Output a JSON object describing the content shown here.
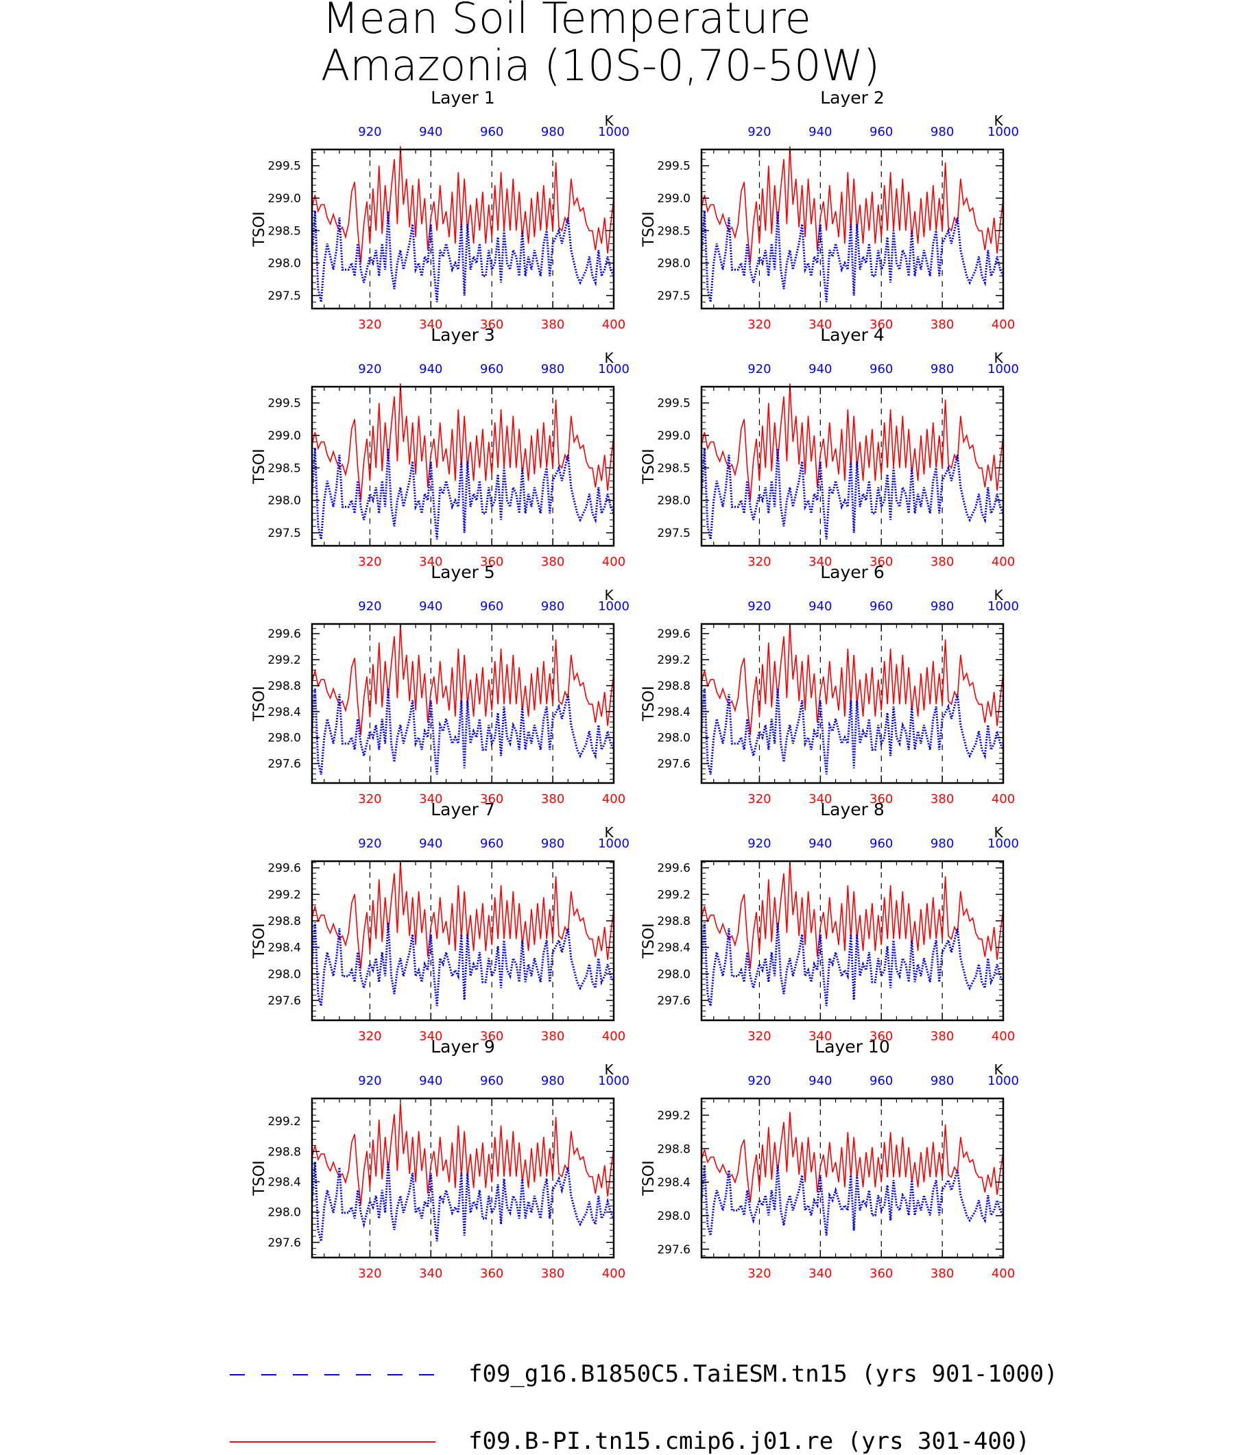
{
  "title": {
    "line1": "Mean Soil Temperature",
    "line2": "Amazonia (10S-0,70-50W)"
  },
  "colors": {
    "series_red": "#ff0000",
    "series_blue": "#0000ff",
    "axis": "#000000"
  },
  "legend": [
    {
      "label": "f09_g16.B1850C5.TaiESM.tn15 (yrs 901-1000)",
      "color": "#0000ff",
      "style": "dashed"
    },
    {
      "label": "f09.B-PI.tn15.cmip6.j01.re (yrs 301-400)",
      "color": "#ff0000",
      "style": "solid"
    }
  ],
  "chart_data": {
    "type": "line",
    "panel_count": 10,
    "layout": "5 rows x 2 columns",
    "ylabel": "TSOI",
    "bottom_axis": {
      "color": "#ff0000",
      "range": [
        301,
        400
      ],
      "ticks": [
        "320",
        "340",
        "360",
        "380",
        "400"
      ]
    },
    "top_axis": {
      "color": "#0000ff",
      "range": [
        901,
        1000
      ],
      "ticks": [
        "920",
        "940",
        "960",
        "980",
        "1000"
      ],
      "unit_label": "K"
    },
    "vertical_reference_lines": [
      320,
      340,
      360,
      380
    ],
    "red_series_values": [
      298.85,
      299.05,
      298.8,
      298.9,
      298.9,
      298.7,
      298.6,
      298.75,
      298.6,
      298.5,
      298.55,
      298.4,
      298.6,
      299.1,
      299.25,
      298.5,
      298.0,
      298.6,
      298.95,
      298.3,
      299.15,
      298.5,
      299.5,
      298.45,
      299.2,
      298.6,
      299.15,
      299.6,
      298.6,
      299.8,
      298.9,
      299.3,
      298.55,
      299.2,
      298.4,
      299.3,
      298.6,
      299.0,
      298.2,
      298.7,
      298.95,
      298.5,
      299.2,
      298.6,
      298.8,
      298.4,
      299.1,
      298.3,
      299.4,
      298.5,
      299.3,
      298.5,
      298.9,
      298.3,
      299.0,
      298.5,
      299.1,
      298.3,
      298.9,
      298.4,
      299.2,
      298.5,
      299.4,
      298.5,
      299.15,
      298.5,
      299.3,
      298.5,
      299.1,
      298.4,
      298.8,
      298.3,
      299.0,
      298.4,
      299.1,
      298.5,
      299.2,
      298.5,
      299.0,
      298.5,
      299.55,
      298.55,
      298.5,
      298.7,
      298.6,
      299.3,
      298.9,
      299.0,
      298.8,
      298.85,
      298.6,
      298.5,
      298.5,
      298.2,
      298.55,
      298.3,
      298.7,
      298.15,
      298.6,
      299.0
    ],
    "blue_series_values": [
      298.1,
      298.8,
      297.6,
      297.4,
      298.0,
      298.3,
      298.1,
      297.9,
      298.2,
      298.7,
      297.9,
      297.9,
      297.9,
      298.0,
      297.8,
      298.3,
      297.9,
      297.7,
      297.9,
      298.1,
      298.0,
      298.2,
      297.8,
      298.3,
      297.9,
      298.8,
      297.9,
      297.6,
      298.0,
      298.2,
      297.9,
      298.1,
      298.3,
      298.6,
      297.9,
      298.0,
      297.8,
      298.1,
      298.0,
      298.6,
      297.9,
      297.4,
      298.2,
      298.1,
      298.3,
      298.1,
      297.9,
      298.0,
      297.9,
      298.6,
      297.5,
      298.6,
      297.9,
      298.1,
      298.0,
      298.3,
      297.8,
      297.8,
      298.2,
      297.9,
      298.0,
      298.4,
      297.7,
      298.5,
      298.0,
      297.9,
      298.2,
      298.1,
      297.8,
      298.5,
      297.8,
      298.1,
      297.9,
      298.2,
      298.0,
      297.8,
      298.3,
      298.5,
      297.8,
      298.3,
      298.4,
      298.5,
      298.3,
      298.5,
      298.7,
      298.2,
      298.0,
      297.8,
      297.7,
      297.8,
      297.9,
      298.1,
      297.8,
      297.7,
      298.2,
      297.8,
      297.9,
      298.1,
      297.9,
      297.8
    ],
    "panels": [
      {
        "title": "Layer 1",
        "ylim": [
          297.3,
          299.75
        ],
        "yticks": [
          "299.5",
          "299.0",
          "298.5",
          "298.0",
          "297.5"
        ],
        "ytick_values": [
          299.5,
          299.0,
          298.5,
          298.0,
          297.5
        ],
        "red_offset": 0.0,
        "blue_offset": 0.0,
        "scale": 1.0
      },
      {
        "title": "Layer 2",
        "ylim": [
          297.3,
          299.75
        ],
        "yticks": [
          "299.5",
          "299.0",
          "298.5",
          "298.0",
          "297.5"
        ],
        "ytick_values": [
          299.5,
          299.0,
          298.5,
          298.0,
          297.5
        ],
        "red_offset": 0.0,
        "blue_offset": 0.0,
        "scale": 1.0
      },
      {
        "title": "Layer 3",
        "ylim": [
          297.3,
          299.75
        ],
        "yticks": [
          "299.5",
          "299.0",
          "298.5",
          "298.0",
          "297.5"
        ],
        "ytick_values": [
          299.5,
          299.0,
          298.5,
          298.0,
          297.5
        ],
        "red_offset": 0.0,
        "blue_offset": 0.0,
        "scale": 1.0
      },
      {
        "title": "Layer 4",
        "ylim": [
          297.3,
          299.75
        ],
        "yticks": [
          "299.5",
          "299.0",
          "298.5",
          "298.0",
          "297.5"
        ],
        "ytick_values": [
          299.5,
          299.0,
          298.5,
          298.0,
          297.5
        ],
        "red_offset": 0.0,
        "blue_offset": 0.0,
        "scale": 1.0
      },
      {
        "title": "Layer 5",
        "ylim": [
          297.3,
          299.75
        ],
        "yticks": [
          "299.6",
          "299.2",
          "298.8",
          "298.4",
          "298.0",
          "297.6"
        ],
        "ytick_values": [
          299.6,
          299.2,
          298.8,
          298.4,
          298.0,
          297.6
        ],
        "red_offset": 0.0,
        "blue_offset": 0.0,
        "scale": 0.95
      },
      {
        "title": "Layer 6",
        "ylim": [
          297.3,
          299.75
        ],
        "yticks": [
          "299.6",
          "299.2",
          "298.8",
          "298.4",
          "298.0",
          "297.6"
        ],
        "ytick_values": [
          299.6,
          299.2,
          298.8,
          298.4,
          298.0,
          297.6
        ],
        "red_offset": 0.0,
        "blue_offset": 0.0,
        "scale": 0.95
      },
      {
        "title": "Layer 7",
        "ylim": [
          297.3,
          299.7
        ],
        "yticks": [
          "299.6",
          "299.2",
          "298.8",
          "298.4",
          "298.0",
          "297.6"
        ],
        "ytick_values": [
          299.6,
          299.2,
          298.8,
          298.4,
          298.0,
          297.6
        ],
        "red_offset": 0.0,
        "blue_offset": 0.05,
        "scale": 0.9
      },
      {
        "title": "Layer 8",
        "ylim": [
          297.3,
          299.7
        ],
        "yticks": [
          "299.6",
          "299.2",
          "298.8",
          "298.4",
          "298.0",
          "297.6"
        ],
        "ytick_values": [
          299.6,
          299.2,
          298.8,
          298.4,
          298.0,
          297.6
        ],
        "red_offset": 0.0,
        "blue_offset": 0.05,
        "scale": 0.9
      },
      {
        "title": "Layer 9",
        "ylim": [
          297.4,
          299.5
        ],
        "yticks": [
          "299.2",
          "298.8",
          "298.4",
          "298.0",
          "297.6"
        ],
        "ytick_values": [
          299.2,
          298.8,
          298.4,
          298.0,
          297.6
        ],
        "red_offset": -0.1,
        "blue_offset": 0.05,
        "scale": 0.75
      },
      {
        "title": "Layer 10",
        "ylim": [
          297.5,
          299.4
        ],
        "yticks": [
          "299.2",
          "298.8",
          "298.4",
          "298.0",
          "297.6"
        ],
        "ytick_values": [
          299.2,
          298.8,
          298.4,
          298.0,
          297.6
        ],
        "red_offset": -0.15,
        "blue_offset": 0.1,
        "scale": 0.6
      }
    ]
  }
}
